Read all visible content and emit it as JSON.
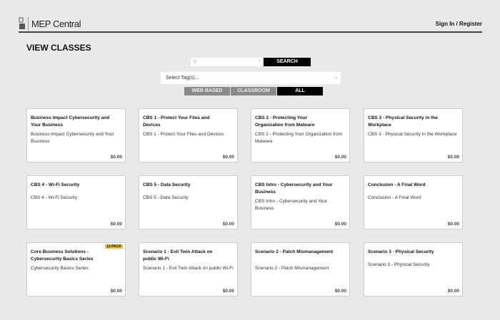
{
  "header": {
    "logo_text": "MEP Central",
    "signin": "Sign In / Register"
  },
  "page_title": "VIEW CLASSES",
  "search": {
    "placeholder": "",
    "button": "SEARCH"
  },
  "tag_select": {
    "value": "Select Tag(s)..."
  },
  "tabs": [
    {
      "label": "WEB BASED",
      "active": false
    },
    {
      "label": "CLASSROOM",
      "active": false
    },
    {
      "label": "ALL",
      "active": true
    }
  ],
  "cards": [
    {
      "title": "Business Impact Cybersecurity and Your Business",
      "desc": "Business Impact Cybersecurity and Your Business",
      "price": "$0.00"
    },
    {
      "title": "CBS 1 - Protect Your Files and Devices",
      "desc": "CBS 1 - Protect Your Files and Devices",
      "price": "$0.00"
    },
    {
      "title": "CBS 2 - Protecting Your Organization from Malware",
      "desc": "CBS 2 - Protecting Your Organization from Malware",
      "price": "$0.00"
    },
    {
      "title": "CBS 3 - Physical Security in the Workplace",
      "desc": "CBS 3 - Physical Security in the Workplace",
      "price": "$0.00"
    },
    {
      "title": "CBS 4 - Wi-Fi Security",
      "desc": "CBS 4 - Wi-Fi Security",
      "price": "$0.00"
    },
    {
      "title": "CBS 5 - Data Security",
      "desc": "CBS 5 - Data Security",
      "price": "$0.00"
    },
    {
      "title": "CBS Intro - Cybersecurity and Your Business",
      "desc": "CBS Intro - Cybersecurity and Your Business",
      "price": "$0.00"
    },
    {
      "title": "Conclusion - A Final Word",
      "desc": "Conclusion - A Final Word",
      "price": "$0.00"
    },
    {
      "title": "Core Business Solutions - Cybersecurity Basics Series",
      "desc": "Cybersecurity Basics Series",
      "price": "$0.00",
      "badge": "12-PACK"
    },
    {
      "title": "Scenario 1 - Evil Twin Attack on public Wi-Fi",
      "desc": "Scenario 1 - Evil Twin Attack on public Wi-Fi",
      "price": "$0.00"
    },
    {
      "title": "Scenario 2 - Patch Mismanagement",
      "desc": "Scenario 2 - Patch Mismanagement",
      "price": "$0.00"
    },
    {
      "title": "Scenario 3 - Physical Security",
      "desc": "Scenario 3 - Physical Security",
      "price": "$0.00"
    }
  ]
}
